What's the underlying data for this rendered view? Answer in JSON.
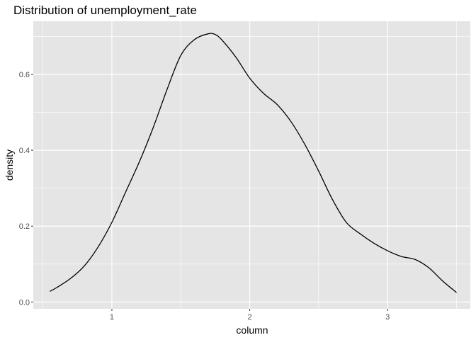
{
  "chart_data": {
    "type": "line",
    "title": "Distribution of unemployment_rate",
    "xlabel": "column",
    "ylabel": "density",
    "xlim": [
      0.43,
      3.6
    ],
    "ylim": [
      -0.018,
      0.74
    ],
    "x_ticks": [
      1,
      2,
      3
    ],
    "x_tick_labels": [
      "1",
      "2",
      "3"
    ],
    "x_minor_ticks": [
      0.5,
      1.5,
      2.5,
      3.5
    ],
    "y_ticks": [
      0.0,
      0.2,
      0.4,
      0.6
    ],
    "y_tick_labels": [
      "0.0",
      "0.2",
      "0.4",
      "0.6"
    ],
    "y_minor_ticks": [
      0.1,
      0.3,
      0.5,
      0.7
    ],
    "grid": true,
    "colors": {
      "panel": "#e5e5e5",
      "grid": "#ffffff",
      "line": "#000000"
    },
    "series": [
      {
        "x": [
          0.55,
          0.6,
          0.7,
          0.8,
          0.9,
          1.0,
          1.1,
          1.2,
          1.3,
          1.4,
          1.5,
          1.6,
          1.7,
          1.75,
          1.8,
          1.9,
          2.0,
          2.1,
          2.2,
          2.3,
          2.4,
          2.5,
          2.6,
          2.7,
          2.8,
          2.9,
          3.0,
          3.1,
          3.2,
          3.3,
          3.4,
          3.5
        ],
        "y": [
          0.028,
          0.038,
          0.062,
          0.095,
          0.145,
          0.21,
          0.29,
          0.37,
          0.46,
          0.56,
          0.65,
          0.692,
          0.707,
          0.705,
          0.69,
          0.645,
          0.59,
          0.55,
          0.52,
          0.475,
          0.415,
          0.345,
          0.27,
          0.21,
          0.18,
          0.155,
          0.135,
          0.12,
          0.112,
          0.09,
          0.055,
          0.025
        ]
      }
    ]
  }
}
